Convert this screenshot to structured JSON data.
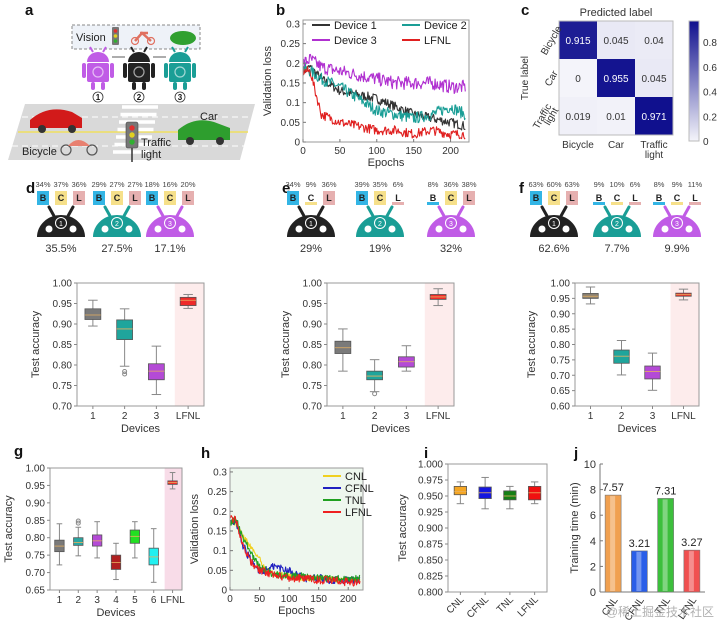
{
  "panel_labels": {
    "a": "a",
    "b": "b",
    "c": "c",
    "d": "d",
    "e": "e",
    "f": "f",
    "g": "g",
    "h": "h",
    "i": "i",
    "j": "j"
  },
  "panel_a": {
    "vision_label": "Vision",
    "device_numbers": [
      "1",
      "2",
      "3"
    ],
    "car_label": "Car",
    "bicycle_label": "Bicycle",
    "traffic_light_label": [
      "Traffic",
      "light"
    ],
    "colors": {
      "device1": "#222222",
      "device2": "#1a9e96",
      "device3": "#c05ce6"
    }
  },
  "watermark": "@稀土掘金技术社区",
  "chart_data": [
    {
      "id": "b",
      "type": "line",
      "title": "",
      "xlabel": "Epochs",
      "ylabel": "Validation loss",
      "xlim": [
        0,
        225
      ],
      "ylim": [
        0,
        0.31
      ],
      "xticks": [
        0,
        50,
        100,
        150,
        200
      ],
      "yticks": [
        0,
        0.05,
        0.1,
        0.15,
        0.2,
        0.25,
        0.3
      ],
      "ytick_labels": [
        "0",
        "0.05",
        "0.1",
        "0.15",
        "0.2",
        "0.25",
        "0.3"
      ],
      "legend": "top",
      "series": [
        {
          "name": "Device 1",
          "color": "#333333",
          "x": [
            0,
            10,
            25,
            50,
            75,
            100,
            125,
            150,
            175,
            200,
            220
          ],
          "values": [
            0.18,
            0.19,
            0.16,
            0.13,
            0.12,
            0.11,
            0.09,
            0.07,
            0.06,
            0.05,
            0.04
          ]
        },
        {
          "name": "Device 2",
          "color": "#1a9e96",
          "x": [
            0,
            10,
            25,
            50,
            75,
            100,
            125,
            150,
            175,
            200,
            220
          ],
          "values": [
            0.19,
            0.18,
            0.16,
            0.14,
            0.11,
            0.08,
            0.07,
            0.06,
            0.07,
            0.09,
            0.07
          ]
        },
        {
          "name": "Device 3",
          "color": "#b030d0",
          "x": [
            0,
            10,
            25,
            50,
            75,
            100,
            125,
            150,
            175,
            200,
            220
          ],
          "values": [
            0.2,
            0.21,
            0.19,
            0.18,
            0.17,
            0.16,
            0.15,
            0.15,
            0.15,
            0.14,
            0.14
          ]
        },
        {
          "name": "LFNL",
          "color": "#e02020",
          "x": [
            0,
            10,
            15,
            25,
            50,
            75,
            100,
            125,
            150,
            175,
            200,
            220
          ],
          "values": [
            0.18,
            0.18,
            0.14,
            0.07,
            0.05,
            0.04,
            0.03,
            0.03,
            0.02,
            0.03,
            0.02,
            0.02
          ]
        }
      ]
    },
    {
      "id": "c",
      "type": "heatmap",
      "title": "Predicted label",
      "xlabel": "",
      "ylabel": "True label",
      "x_categories": [
        "Bicycle",
        "Car",
        "Traffic light"
      ],
      "y_categories": [
        "Bicycle",
        "Car",
        "Traffic light"
      ],
      "values": [
        [
          0.915,
          0.045,
          0.04
        ],
        [
          0,
          0.955,
          0.045
        ],
        [
          0.019,
          0.01,
          0.971
        ]
      ],
      "value_labels": [
        [
          "0.915",
          "0.045",
          "0.04"
        ],
        [
          "0",
          "0.955",
          "0.045"
        ],
        [
          "0.019",
          "0.01",
          "0.971"
        ]
      ],
      "colorbar": {
        "min": 0,
        "max": 0.971,
        "ticks": [
          0,
          0.2,
          0.4,
          0.6,
          0.8
        ],
        "tick_labels": [
          "0",
          "0.2",
          "0.4",
          "0.6",
          "0.8"
        ],
        "color_low": "#f4f4fa",
        "color_high": "#10108e"
      }
    },
    {
      "id": "d",
      "type": "box",
      "xlabel": "Devices",
      "ylabel": "Test accuracy",
      "ylim": [
        0.7,
        1.0
      ],
      "yticks": [
        0.7,
        0.75,
        0.8,
        0.85,
        0.9,
        0.95,
        1.0
      ],
      "ytick_labels": [
        "0.70",
        "0.75",
        "0.80",
        "0.85",
        "0.90",
        "0.95",
        "1.00"
      ],
      "highlight_category": "LFNL",
      "boxes": [
        {
          "label": "1",
          "color": "#7a7a7a",
          "min": 0.895,
          "q1": 0.911,
          "median": 0.922,
          "q3": 0.937,
          "max": 0.958,
          "outliers": []
        },
        {
          "label": "2",
          "color": "#1fa59c",
          "min": 0.797,
          "q1": 0.862,
          "median": 0.888,
          "q3": 0.91,
          "max": 0.937,
          "outliers": [
            0.784,
            0.778
          ]
        },
        {
          "label": "3",
          "color": "#b44ad6",
          "min": 0.728,
          "q1": 0.764,
          "median": 0.785,
          "q3": 0.803,
          "max": 0.846,
          "outliers": []
        },
        {
          "label": "LFNL",
          "color": "#ee2a2a",
          "min": 0.938,
          "q1": 0.945,
          "median": 0.958,
          "q3": 0.965,
          "max": 0.972,
          "outliers": []
        }
      ],
      "device_share": {
        "devices": [
          {
            "id": "1",
            "color": "#222222",
            "bcl": [
              "34%",
              "37%",
              "36%"
            ],
            "bcl_values": [
              34,
              37,
              36
            ],
            "total": "35.5%"
          },
          {
            "id": "2",
            "color": "#1a9e96",
            "bcl": [
              "29%",
              "27%",
              "27%"
            ],
            "bcl_values": [
              29,
              27,
              27
            ],
            "total": "27.5%"
          },
          {
            "id": "3",
            "color": "#c05ce6",
            "bcl": [
              "18%",
              "16%",
              "20%"
            ],
            "bcl_values": [
              18,
              16,
              20
            ],
            "total": "17.1%"
          }
        ]
      }
    },
    {
      "id": "e",
      "type": "box",
      "xlabel": "Devices",
      "ylabel": "Test accuracy",
      "ylim": [
        0.7,
        1.0
      ],
      "yticks": [
        0.7,
        0.75,
        0.8,
        0.85,
        0.9,
        0.95,
        1.0
      ],
      "ytick_labels": [
        "0.70",
        "0.75",
        "0.80",
        "0.85",
        "0.90",
        "0.95",
        "1.00"
      ],
      "highlight_category": "LFNL",
      "boxes": [
        {
          "label": "1",
          "color": "#7a7a7a",
          "min": 0.785,
          "q1": 0.828,
          "median": 0.842,
          "q3": 0.858,
          "max": 0.888,
          "outliers": []
        },
        {
          "label": "2",
          "color": "#1fa59c",
          "min": 0.735,
          "q1": 0.764,
          "median": 0.773,
          "q3": 0.785,
          "max": 0.813,
          "outliers": [
            0.73
          ]
        },
        {
          "label": "3",
          "color": "#b44ad6",
          "min": 0.785,
          "q1": 0.795,
          "median": 0.808,
          "q3": 0.82,
          "max": 0.847,
          "outliers": []
        },
        {
          "label": "LFNL",
          "color": "#ee2a2a",
          "min": 0.945,
          "q1": 0.96,
          "median": 0.966,
          "q3": 0.972,
          "max": 0.986,
          "outliers": []
        }
      ],
      "device_share": {
        "devices": [
          {
            "id": "1",
            "color": "#222222",
            "bcl": [
              "34%",
              "9%",
              "36%"
            ],
            "bcl_values": [
              34,
              9,
              36
            ],
            "total": "29%"
          },
          {
            "id": "2",
            "color": "#1a9e96",
            "bcl": [
              "39%",
              "35%",
              "6%"
            ],
            "bcl_values": [
              39,
              35,
              6
            ],
            "total": "19%"
          },
          {
            "id": "3",
            "color": "#c05ce6",
            "bcl": [
              "8%",
              "36%",
              "38%"
            ],
            "bcl_values": [
              8,
              36,
              38
            ],
            "total": "32%"
          }
        ]
      }
    },
    {
      "id": "f",
      "type": "box",
      "xlabel": "Devices",
      "ylabel": "Test accuracy",
      "ylim": [
        0.6,
        1.0
      ],
      "yticks": [
        0.6,
        0.65,
        0.7,
        0.75,
        0.8,
        0.85,
        0.9,
        0.95,
        1.0
      ],
      "ytick_labels": [
        "0.60",
        "0.65",
        "0.70",
        "0.75",
        "0.80",
        "0.85",
        "0.90",
        "0.95",
        "1.00"
      ],
      "highlight_category": "LFNL",
      "boxes": [
        {
          "label": "1",
          "color": "#8a8070",
          "min": 0.932,
          "q1": 0.95,
          "median": 0.957,
          "q3": 0.966,
          "max": 0.987,
          "outliers": []
        },
        {
          "label": "2",
          "color": "#1fa59c",
          "min": 0.701,
          "q1": 0.739,
          "median": 0.762,
          "q3": 0.782,
          "max": 0.813,
          "outliers": []
        },
        {
          "label": "3",
          "color": "#b44ad6",
          "min": 0.651,
          "q1": 0.688,
          "median": 0.712,
          "q3": 0.73,
          "max": 0.772,
          "outliers": []
        },
        {
          "label": "LFNL",
          "color": "#ee2a2a",
          "min": 0.945,
          "q1": 0.957,
          "median": 0.962,
          "q3": 0.967,
          "max": 0.98,
          "outliers": []
        }
      ],
      "device_share": {
        "devices": [
          {
            "id": "1",
            "color": "#222222",
            "bcl": [
              "63%",
              "60%",
              "63%"
            ],
            "bcl_values": [
              63,
              60,
              63
            ],
            "total": "62.6%"
          },
          {
            "id": "2",
            "color": "#1a9e96",
            "bcl": [
              "9%",
              "10%",
              "6%"
            ],
            "bcl_values": [
              9,
              10,
              6
            ],
            "total": "7.7%"
          },
          {
            "id": "3",
            "color": "#c05ce6",
            "bcl": [
              "8%",
              "9%",
              "11%"
            ],
            "bcl_values": [
              8,
              9,
              11
            ],
            "total": "9.9%"
          }
        ]
      }
    },
    {
      "id": "g",
      "type": "box",
      "xlabel": "Devices",
      "ylabel": "Test accuracy",
      "ylim": [
        0.65,
        1.0
      ],
      "yticks": [
        0.65,
        0.7,
        0.75,
        0.8,
        0.85,
        0.9,
        0.95,
        1.0
      ],
      "ytick_labels": [
        "0.65",
        "0.70",
        "0.75",
        "0.80",
        "0.85",
        "0.90",
        "0.95",
        "1.00"
      ],
      "highlight_category": "LFNL",
      "boxes": [
        {
          "label": "1",
          "color": "#7a7a7a",
          "min": 0.722,
          "q1": 0.76,
          "median": 0.776,
          "q3": 0.793,
          "max": 0.84,
          "outliers": []
        },
        {
          "label": "2",
          "color": "#2aa5a0",
          "min": 0.748,
          "q1": 0.778,
          "median": 0.786,
          "q3": 0.8,
          "max": 0.83,
          "outliers": [
            0.842,
            0.848
          ]
        },
        {
          "label": "3",
          "color": "#b44ad6",
          "min": 0.742,
          "q1": 0.776,
          "median": 0.791,
          "q3": 0.808,
          "max": 0.846,
          "outliers": []
        },
        {
          "label": "4",
          "color": "#b02020",
          "min": 0.68,
          "q1": 0.709,
          "median": 0.729,
          "q3": 0.75,
          "max": 0.784,
          "outliers": []
        },
        {
          "label": "5",
          "color": "#22e022",
          "min": 0.742,
          "q1": 0.784,
          "median": 0.804,
          "q3": 0.822,
          "max": 0.846,
          "outliers": []
        },
        {
          "label": "6",
          "color": "#22f0f0",
          "min": 0.672,
          "q1": 0.722,
          "median": 0.745,
          "q3": 0.77,
          "max": 0.826,
          "outliers": []
        },
        {
          "label": "LFNL",
          "color": "#ee2a2a",
          "min": 0.94,
          "q1": 0.953,
          "median": 0.958,
          "q3": 0.963,
          "max": 0.987,
          "outliers": []
        }
      ]
    },
    {
      "id": "h",
      "type": "line",
      "xlabel": "Epochs",
      "ylabel": "Validation loss",
      "xlim": [
        0,
        225
      ],
      "ylim": [
        0,
        0.31
      ],
      "xticks": [
        0,
        50,
        100,
        150,
        200
      ],
      "yticks": [
        0,
        0.05,
        0.1,
        0.15,
        0.2,
        0.25,
        0.3
      ],
      "ytick_labels": [
        "0",
        "0.05",
        "0.1",
        "0.15",
        "0.2",
        "0.25",
        "0.3"
      ],
      "legend": "top-right",
      "series": [
        {
          "name": "CNL",
          "color": "#f0d020",
          "x": [
            0,
            10,
            20,
            30,
            40,
            50,
            60,
            75,
            100,
            125,
            150,
            175,
            200,
            220
          ],
          "values": [
            0.18,
            0.17,
            0.14,
            0.12,
            0.1,
            0.08,
            0.05,
            0.04,
            0.035,
            0.03,
            0.03,
            0.028,
            0.025,
            0.025
          ]
        },
        {
          "name": "CFNL",
          "color": "#2020c0",
          "x": [
            0,
            10,
            20,
            30,
            40,
            50,
            60,
            75,
            100,
            125,
            150,
            175,
            200,
            220
          ],
          "values": [
            0.18,
            0.17,
            0.12,
            0.09,
            0.06,
            0.05,
            0.05,
            0.06,
            0.05,
            0.03,
            0.03,
            0.025,
            0.025,
            0.025
          ]
        },
        {
          "name": "TNL",
          "color": "#20a020",
          "x": [
            0,
            10,
            20,
            30,
            40,
            50,
            60,
            75,
            100,
            125,
            150,
            175,
            200,
            220
          ],
          "values": [
            0.17,
            0.18,
            0.14,
            0.11,
            0.08,
            0.06,
            0.05,
            0.04,
            0.035,
            0.035,
            0.03,
            0.03,
            0.025,
            0.03
          ]
        },
        {
          "name": "LFNL",
          "color": "#ee2020",
          "x": [
            0,
            10,
            20,
            30,
            40,
            50,
            60,
            75,
            100,
            125,
            150,
            175,
            200,
            220
          ],
          "values": [
            0.18,
            0.18,
            0.12,
            0.09,
            0.06,
            0.05,
            0.045,
            0.04,
            0.03,
            0.03,
            0.025,
            0.025,
            0.02,
            0.02
          ]
        }
      ]
    },
    {
      "id": "i",
      "type": "box",
      "xlabel": "",
      "ylabel": "Test accuracy",
      "ylim": [
        0.8,
        1.0
      ],
      "yticks": [
        0.8,
        0.825,
        0.85,
        0.875,
        0.9,
        0.925,
        0.95,
        0.975,
        1.0
      ],
      "ytick_labels": [
        "0.800",
        "0.825",
        "0.850",
        "0.875",
        "0.900",
        "0.925",
        "0.950",
        "0.975",
        "1.000"
      ],
      "boxes": [
        {
          "label": "CNL",
          "color": "#f5a623",
          "min": 0.938,
          "q1": 0.952,
          "median": 0.957,
          "q3": 0.965,
          "max": 0.972,
          "outliers": []
        },
        {
          "label": "CFNL",
          "color": "#1515e0",
          "min": 0.93,
          "q1": 0.946,
          "median": 0.955,
          "q3": 0.964,
          "max": 0.979,
          "outliers": []
        },
        {
          "label": "TNL",
          "color": "#168016",
          "min": 0.93,
          "q1": 0.944,
          "median": 0.95,
          "q3": 0.958,
          "max": 0.965,
          "outliers": []
        },
        {
          "label": "LFNL",
          "color": "#f01010",
          "min": 0.938,
          "q1": 0.944,
          "median": 0.955,
          "q3": 0.965,
          "max": 0.972,
          "outliers": []
        }
      ]
    },
    {
      "id": "j",
      "type": "bar",
      "xlabel": "",
      "ylabel": "Training time (min)",
      "ylim": [
        0,
        10
      ],
      "yticks": [
        0,
        2,
        4,
        6,
        8,
        10
      ],
      "ytick_labels": [
        "0",
        "2",
        "4",
        "6",
        "8",
        "10"
      ],
      "categories": [
        "CNL",
        "CFNL",
        "TNL",
        "LFNL"
      ],
      "values": [
        7.57,
        3.21,
        7.31,
        3.27
      ],
      "value_labels": [
        "7.57",
        "3.21",
        "7.31",
        "3.27"
      ],
      "colors": [
        "#f0a050",
        "#2a5ee8",
        "#3cbf3c",
        "#f05050"
      ]
    }
  ]
}
